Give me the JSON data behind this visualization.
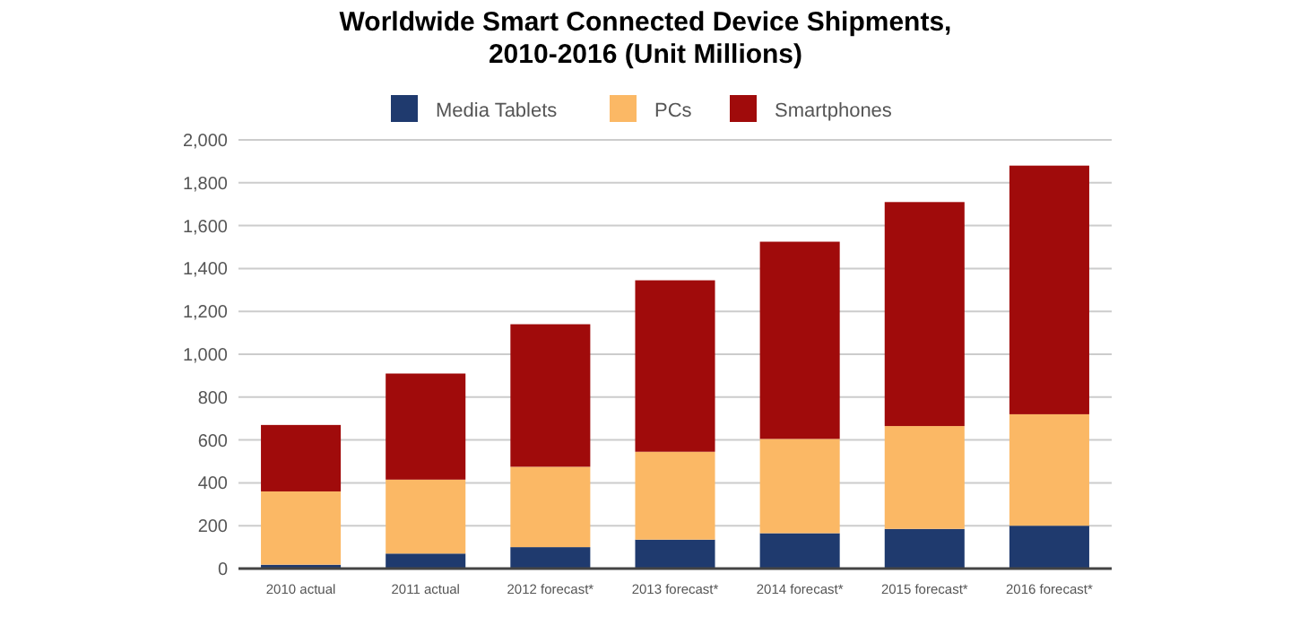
{
  "chart_data": {
    "type": "bar",
    "stacked": true,
    "title": "Worldwide Smart Connected Device Shipments,\n2010-2016 (Unit Millions)",
    "categories": [
      "2010 actual",
      "2011 actual",
      "2012 forecast*",
      "2013 forecast*",
      "2014 forecast*",
      "2015 forecast*",
      "2016 forecast*"
    ],
    "series": [
      {
        "name": "Media Tablets",
        "color": "#1f3a6e",
        "values": [
          18,
          70,
          100,
          135,
          165,
          185,
          200
        ]
      },
      {
        "name": "PCs",
        "color": "#fbb865",
        "values": [
          342,
          345,
          375,
          410,
          440,
          480,
          520
        ]
      },
      {
        "name": "Smartphones",
        "color": "#a00b0b",
        "values": [
          310,
          495,
          665,
          800,
          920,
          1045,
          1160
        ]
      }
    ],
    "ylim": [
      0,
      2000
    ],
    "yticks": [
      {
        "value": 0,
        "label": "0"
      },
      {
        "value": 200,
        "label": "200"
      },
      {
        "value": 400,
        "label": "400"
      },
      {
        "value": 600,
        "label": "600"
      },
      {
        "value": 800,
        "label": "800"
      },
      {
        "value": 1000,
        "label": "1,000"
      },
      {
        "value": 1200,
        "label": "1,200"
      },
      {
        "value": 1400,
        "label": "1,400"
      },
      {
        "value": 1600,
        "label": "1,600"
      },
      {
        "value": 1800,
        "label": "1,800"
      },
      {
        "value": 2000,
        "label": "2,000"
      }
    ],
    "grid": "y",
    "legend": "top"
  }
}
